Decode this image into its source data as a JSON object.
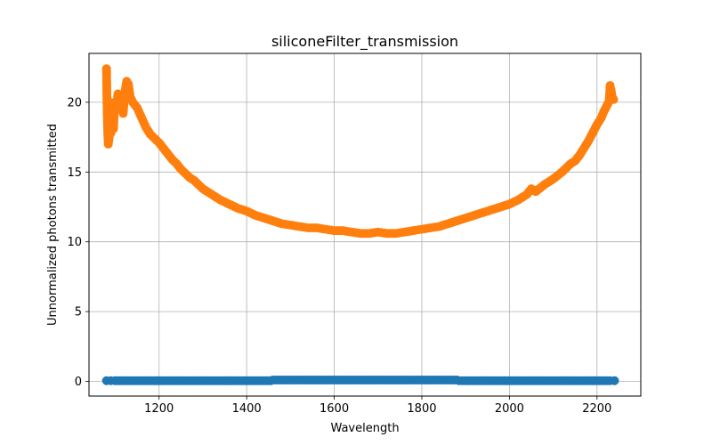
{
  "chart_data": {
    "type": "line",
    "title": "siliconeFilter_transmission",
    "xlabel": "Wavelength",
    "ylabel": "Unnormalized photons transmitted",
    "xlim": [
      1040,
      2300
    ],
    "ylim": [
      -1.05,
      23.5
    ],
    "xticks": [
      1200,
      1400,
      1600,
      1800,
      2000,
      2200
    ],
    "yticks": [
      0,
      5,
      10,
      15,
      20
    ],
    "grid": true,
    "legend": "none",
    "series": [
      {
        "color": "#1f77b4",
        "marker": "circle",
        "x": [
          1080,
          1090,
          1100,
          1150,
          1200,
          1250,
          1300,
          1350,
          1400,
          1455,
          1460,
          1500,
          1550,
          1600,
          1650,
          1700,
          1750,
          1800,
          1850,
          1880,
          1885,
          1900,
          1950,
          2000,
          2050,
          2100,
          2150,
          2200,
          2230,
          2240
        ],
        "y": [
          0.05,
          0.05,
          0.05,
          0.05,
          0.05,
          0.05,
          0.05,
          0.05,
          0.05,
          0.05,
          0.1,
          0.1,
          0.1,
          0.1,
          0.1,
          0.1,
          0.1,
          0.1,
          0.1,
          0.1,
          0.05,
          0.05,
          0.05,
          0.05,
          0.05,
          0.05,
          0.05,
          0.05,
          0.05,
          0.05
        ]
      },
      {
        "color": "#ff7f0e",
        "marker": "circle",
        "x": [
          1080,
          1081,
          1082,
          1083,
          1084,
          1086,
          1088,
          1090,
          1092,
          1094,
          1096,
          1098,
          1100,
          1103,
          1106,
          1110,
          1114,
          1118,
          1122,
          1126,
          1128,
          1130,
          1134,
          1140,
          1150,
          1160,
          1170,
          1180,
          1190,
          1200,
          1210,
          1220,
          1230,
          1240,
          1250,
          1260,
          1270,
          1280,
          1290,
          1300,
          1320,
          1340,
          1360,
          1380,
          1400,
          1420,
          1440,
          1460,
          1480,
          1500,
          1520,
          1540,
          1560,
          1580,
          1600,
          1620,
          1640,
          1660,
          1680,
          1700,
          1720,
          1740,
          1760,
          1780,
          1800,
          1820,
          1840,
          1860,
          1880,
          1900,
          1920,
          1940,
          1960,
          1980,
          2000,
          2020,
          2040,
          2050,
          2060,
          2080,
          2100,
          2120,
          2140,
          2150,
          2160,
          2170,
          2180,
          2190,
          2200,
          2210,
          2215,
          2220,
          2225,
          2228,
          2230,
          2232,
          2234,
          2236,
          2238
        ],
        "y": [
          22.4,
          20.1,
          18.7,
          17.6,
          17.0,
          17.5,
          20.0,
          17.8,
          18.4,
          19.2,
          18.1,
          19.6,
          20.0,
          19.5,
          20.6,
          19.8,
          20.3,
          19.2,
          20.7,
          21.5,
          20.9,
          21.3,
          20.4,
          20.0,
          19.6,
          18.9,
          18.2,
          17.7,
          17.4,
          17.1,
          16.7,
          16.3,
          15.9,
          15.6,
          15.2,
          14.9,
          14.6,
          14.4,
          14.1,
          13.8,
          13.4,
          13.0,
          12.7,
          12.4,
          12.2,
          11.9,
          11.7,
          11.5,
          11.3,
          11.2,
          11.1,
          11.0,
          11.0,
          10.9,
          10.8,
          10.8,
          10.7,
          10.6,
          10.6,
          10.7,
          10.6,
          10.6,
          10.7,
          10.8,
          10.9,
          11.0,
          11.1,
          11.3,
          11.5,
          11.7,
          11.9,
          12.1,
          12.3,
          12.5,
          12.7,
          13.0,
          13.4,
          13.8,
          13.6,
          14.1,
          14.5,
          15.0,
          15.6,
          15.8,
          16.2,
          16.7,
          17.2,
          17.8,
          18.4,
          18.9,
          19.3,
          19.6,
          19.9,
          20.2,
          21.2,
          20.9,
          20.5,
          20.3,
          20.2
        ]
      }
    ]
  }
}
